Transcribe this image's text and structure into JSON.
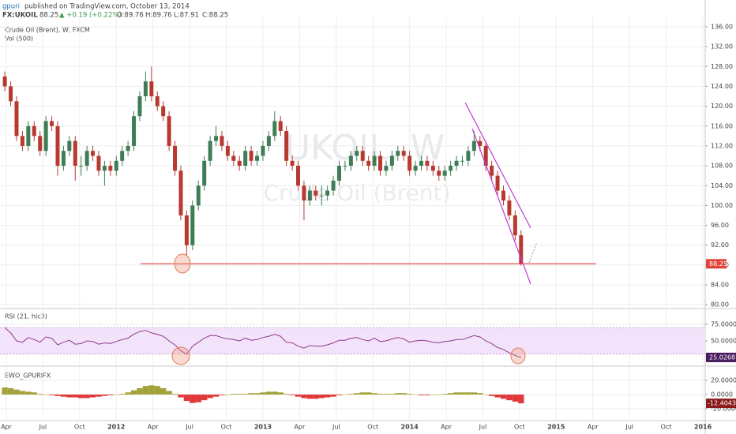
{
  "header": {
    "author": "gpuri",
    "published": "published on TradingView.com, October 13, 2014",
    "symbol": "FX:UKOIL",
    "price": "88.25",
    "change": "▲ +0.19 (+0.22%)",
    "open": "O:89.76",
    "high": "H:89.76",
    "low": "L:87.91",
    "close": "C:88.25"
  },
  "chart_data": [
    {
      "type": "candlestick",
      "title": "Crude Oil (Brent), W, FXCM",
      "subtitle": "Vol (500)",
      "watermark": [
        "UKOIL, W",
        "Crude Oil (Brent)"
      ],
      "x": [
        2011.24,
        2011.28,
        2011.32,
        2011.36,
        2011.4,
        2011.44,
        2011.48,
        2011.52,
        2011.56,
        2011.6,
        2011.64,
        2011.68,
        2011.72,
        2011.76,
        2011.8,
        2011.84,
        2011.88,
        2011.92,
        2011.96,
        2012.0,
        2012.04,
        2012.08,
        2012.12,
        2012.16,
        2012.2,
        2012.24,
        2012.28,
        2012.32,
        2012.36,
        2012.4,
        2012.44,
        2012.48,
        2012.52,
        2012.56,
        2012.6,
        2012.64,
        2012.68,
        2012.72,
        2012.76,
        2012.8,
        2012.84,
        2012.88,
        2012.92,
        2012.96,
        2013.0,
        2013.04,
        2013.08,
        2013.12,
        2013.16,
        2013.2,
        2013.24,
        2013.28,
        2013.32,
        2013.36,
        2013.4,
        2013.44,
        2013.48,
        2013.52,
        2013.56,
        2013.6,
        2013.64,
        2013.68,
        2013.72,
        2013.76,
        2013.8,
        2013.84,
        2013.88,
        2013.92,
        2013.96,
        2014.0,
        2014.04,
        2014.08,
        2014.12,
        2014.16,
        2014.2,
        2014.24,
        2014.28,
        2014.32,
        2014.36,
        2014.4,
        2014.44,
        2014.48,
        2014.52,
        2014.56,
        2014.6,
        2014.64,
        2014.68,
        2014.72,
        2014.76
      ],
      "open": [
        126,
        124,
        121,
        114,
        112,
        116,
        114,
        111,
        117,
        116,
        108,
        111,
        113,
        108,
        108,
        111,
        110,
        107,
        108,
        107,
        109,
        111,
        112,
        118,
        122,
        125,
        122,
        120,
        118,
        112,
        107,
        98,
        92,
        100,
        104,
        109,
        113,
        114,
        112,
        110,
        109,
        108,
        111,
        109,
        110,
        112,
        114,
        117,
        115,
        109,
        108,
        104,
        101,
        103,
        102,
        102,
        103,
        105,
        108,
        108,
        110,
        111,
        109,
        108,
        110,
        107,
        108,
        110,
        111,
        110,
        107,
        108,
        109,
        108,
        107,
        106,
        107,
        108,
        109,
        109,
        111,
        113,
        112,
        108,
        106,
        103,
        101,
        98,
        94
      ],
      "high": [
        127,
        125,
        122,
        115,
        117,
        117,
        115,
        118,
        118,
        117,
        112,
        114,
        114,
        110,
        112,
        112,
        111,
        109,
        109,
        110,
        112,
        113,
        119,
        123,
        127,
        128,
        123,
        121,
        119,
        113,
        108,
        99,
        101,
        105,
        110,
        114,
        116,
        115,
        113,
        111,
        110,
        112,
        112,
        111,
        113,
        115,
        119,
        118,
        116,
        110,
        109,
        105,
        104,
        104,
        104,
        104,
        106,
        109,
        109,
        111,
        112,
        112,
        110,
        111,
        111,
        109,
        111,
        112,
        112,
        111,
        109,
        110,
        110,
        109,
        108,
        108,
        109,
        110,
        110,
        112,
        115,
        114,
        113,
        109,
        107,
        104,
        102,
        99,
        95
      ],
      "low": [
        123,
        120,
        113,
        111,
        111,
        113,
        110,
        110,
        115,
        106,
        107,
        110,
        105,
        106,
        107,
        109,
        106,
        104,
        106,
        106,
        108,
        110,
        111,
        117,
        121,
        121,
        119,
        117,
        111,
        106,
        97,
        90,
        91,
        99,
        103,
        108,
        112,
        111,
        109,
        108,
        107,
        107,
        108,
        108,
        109,
        111,
        113,
        114,
        108,
        107,
        103,
        97,
        100,
        101,
        100,
        101,
        102,
        104,
        107,
        107,
        109,
        108,
        107,
        107,
        106,
        106,
        107,
        109,
        109,
        106,
        106,
        107,
        107,
        106,
        105,
        105,
        106,
        107,
        108,
        108,
        110,
        111,
        107,
        105,
        102,
        100,
        97,
        93,
        87.91
      ],
      "close": [
        124,
        121,
        114,
        112,
        116,
        114,
        111,
        117,
        116,
        108,
        111,
        113,
        108,
        108,
        111,
        110,
        107,
        108,
        107,
        109,
        111,
        112,
        118,
        122,
        125,
        122,
        120,
        118,
        112,
        107,
        98,
        92,
        100,
        104,
        109,
        113,
        114,
        112,
        110,
        109,
        108,
        111,
        109,
        110,
        112,
        114,
        117,
        115,
        109,
        108,
        104,
        101,
        103,
        102,
        102,
        103,
        105,
        108,
        108,
        110,
        111,
        109,
        108,
        110,
        107,
        108,
        110,
        111,
        110,
        107,
        108,
        109,
        108,
        107,
        106,
        107,
        108,
        109,
        109,
        111,
        113,
        112,
        108,
        106,
        103,
        101,
        98,
        94,
        88.25
      ],
      "up_color": "#3e7d55",
      "down_color": "#b8392f",
      "last_color": "#e0433a",
      "xlim": [
        2011.207,
        2016.016
      ],
      "xticks": [
        {
          "value": 2011.25,
          "label": "Apr"
        },
        {
          "value": 2011.5,
          "label": "Jul"
        },
        {
          "value": 2011.75,
          "label": "Oct"
        },
        2012,
        {
          "value": 2012.25,
          "label": "Apr"
        },
        {
          "value": 2012.5,
          "label": "Jul"
        },
        {
          "value": 2012.75,
          "label": "Oct"
        },
        2013,
        {
          "value": 2013.25,
          "label": "Apr"
        },
        {
          "value": 2013.5,
          "label": "Jul"
        },
        {
          "value": 2013.75,
          "label": "Oct"
        },
        2014,
        {
          "value": 2014.25,
          "label": "Apr"
        },
        {
          "value": 2014.5,
          "label": "Jul"
        },
        {
          "value": 2014.75,
          "label": "Oct"
        },
        2015,
        {
          "value": 2015.25,
          "label": "Apr"
        },
        {
          "value": 2015.5,
          "label": "Jul"
        },
        {
          "value": 2015.75,
          "label": "Oct"
        },
        2016
      ],
      "ylim": [
        79.4,
        137.9
      ],
      "yticks": [
        {
          "value": 80,
          "label": "80.00"
        },
        {
          "value": 84,
          "label": "84.00"
        },
        {
          "value": 88,
          "label": "88.00"
        },
        {
          "value": 92,
          "label": "92.00"
        },
        {
          "value": 96,
          "label": "96.00"
        },
        {
          "value": 100,
          "label": "100.00"
        },
        {
          "value": 104,
          "label": "104.00"
        },
        {
          "value": 108,
          "label": "108.00"
        },
        {
          "value": 112,
          "label": "112.00"
        },
        {
          "value": 116,
          "label": "116.00"
        },
        {
          "value": 120,
          "label": "120.00"
        },
        {
          "value": 124,
          "label": "124.00"
        },
        {
          "value": 128,
          "label": "128.00"
        },
        {
          "value": 132,
          "label": "132.00"
        },
        {
          "value": 136,
          "label": "136.00"
        }
      ],
      "grid": true
    },
    {
      "type": "line",
      "title": "RSI (21, hlc3)",
      "color": "#8e3a8e",
      "band": [
        30,
        70
      ],
      "band_color": "#f3e3fa",
      "values": [
        70,
        62,
        50,
        48,
        55,
        52,
        48,
        56,
        54,
        44,
        48,
        51,
        45,
        46,
        50,
        49,
        45,
        47,
        46,
        49,
        52,
        54,
        60,
        64,
        66,
        62,
        60,
        57,
        50,
        44,
        35,
        30,
        42,
        48,
        54,
        58,
        58,
        55,
        53,
        52,
        50,
        54,
        51,
        52,
        55,
        57,
        60,
        57,
        48,
        47,
        42,
        39,
        43,
        42,
        42,
        44,
        47,
        51,
        51,
        54,
        55,
        52,
        50,
        54,
        49,
        50,
        53,
        55,
        53,
        48,
        50,
        51,
        50,
        48,
        47,
        49,
        50,
        52,
        52,
        55,
        58,
        56,
        50,
        46,
        40,
        37,
        32,
        28,
        25.0268
      ],
      "ylim": [
        13.1,
        97.6
      ],
      "yticks": [
        {
          "value": 50,
          "label": "50.0000"
        },
        {
          "value": 75,
          "label": "75.0000"
        }
      ],
      "grid": true
    },
    {
      "type": "bar",
      "title": "EWO_GPURIFX",
      "up_color": "#a3a238",
      "down_color": "#e0393b",
      "values": [
        10,
        9,
        7,
        5,
        4,
        3,
        1,
        0,
        -1,
        -2,
        -3,
        -4,
        -4,
        -5,
        -5,
        -4,
        -3,
        -2,
        -1,
        0,
        1,
        3,
        6,
        9,
        12,
        13,
        12,
        9,
        5,
        1,
        -4,
        -9,
        -12,
        -11,
        -8,
        -5,
        -3,
        -1,
        0,
        1,
        1,
        1,
        2,
        2,
        3,
        4,
        4,
        3,
        1,
        -1,
        -3,
        -5,
        -6,
        -6,
        -5,
        -4,
        -3,
        -1,
        0,
        1,
        2,
        3,
        3,
        2,
        1,
        1,
        1,
        2,
        2,
        1,
        0,
        -1,
        -1,
        0,
        0,
        1,
        2,
        3,
        3,
        3,
        3,
        2,
        0,
        -2,
        -4,
        -6,
        -8,
        -10,
        -12.4043
      ],
      "ylim": [
        -35.6,
        38.9
      ],
      "yticks": [
        {
          "value": -20,
          "label": "-20.0000"
        },
        {
          "value": 0,
          "label": "0.0000"
        },
        {
          "value": 20,
          "label": "20.0000"
        }
      ],
      "grid": true
    }
  ]
}
